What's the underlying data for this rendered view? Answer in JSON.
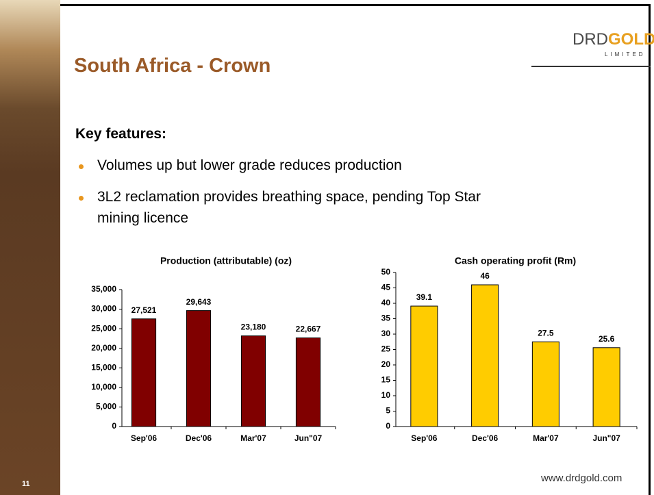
{
  "header": {
    "title": "South Africa - Crown",
    "logo": {
      "part1": "DRD",
      "part2": "GOLD",
      "sub": "LIMITED"
    }
  },
  "body": {
    "heading": "Key features:",
    "bullets": [
      "Volumes up but lower grade reduces production",
      "3L2 reclamation provides breathing space, pending Top Star",
      "mining licence"
    ]
  },
  "footer": {
    "page": "11",
    "url": "www.drdgold.com"
  },
  "chart_data": [
    {
      "type": "bar",
      "title": "Production (attributable) (oz)",
      "categories": [
        "Sep'06",
        "Dec'06",
        "Mar'07",
        "Jun\"07"
      ],
      "values": [
        27521,
        29643,
        23180,
        22667
      ],
      "value_labels": [
        "27,521",
        "29,643",
        "23,180",
        "22,667"
      ],
      "color": "#800000",
      "ylim": [
        0,
        35000
      ],
      "yticks": [
        0,
        {
          "value": 5000,
          "label": "5,000"
        },
        {
          "value": 10000,
          "label": "10,000"
        },
        {
          "value": 15000,
          "label": "15,000"
        },
        {
          "value": 20000,
          "label": "20,000"
        },
        {
          "value": 25000,
          "label": "25,000"
        },
        {
          "value": 30000,
          "label": "30,000"
        },
        {
          "value": 35000,
          "label": "35,000"
        }
      ]
    },
    {
      "type": "bar",
      "title": "Cash operating profit (Rm)",
      "categories": [
        "Sep'06",
        "Dec'06",
        "Mar'07",
        "Jun\"07"
      ],
      "values": [
        39.1,
        46,
        27.5,
        25.6
      ],
      "color": "#ffcc00",
      "ylim": [
        0,
        50
      ],
      "yticks": [
        0,
        5,
        10,
        15,
        20,
        25,
        30,
        35,
        40,
        45,
        50
      ]
    }
  ]
}
